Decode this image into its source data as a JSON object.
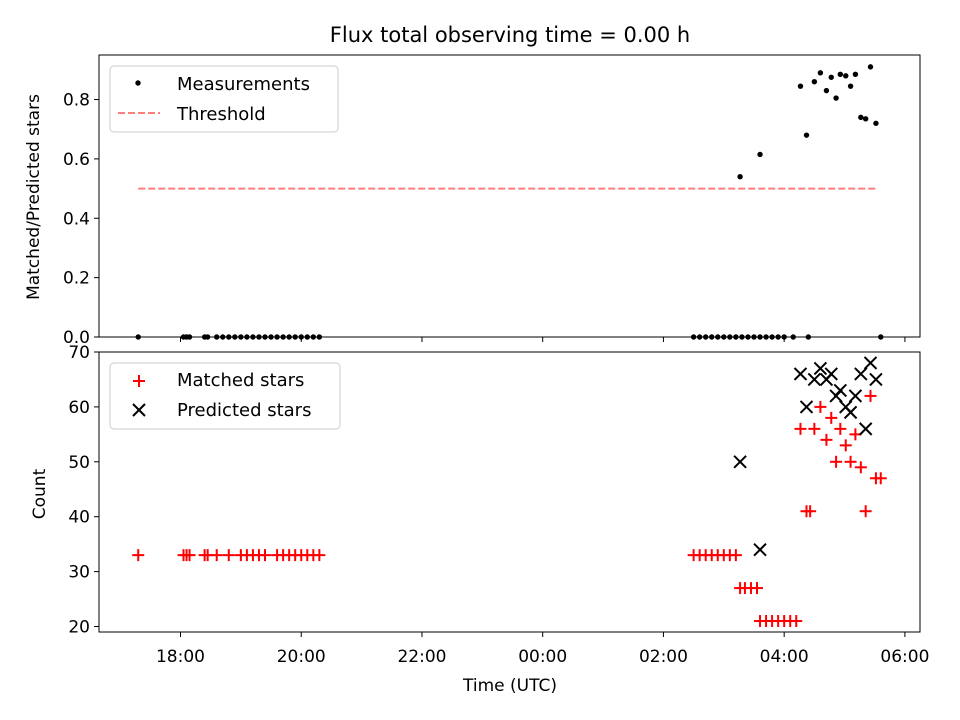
{
  "chart_data": [
    {
      "type": "scatter",
      "title": "Flux total observing time = 0.00 h",
      "ylabel": "Matched/Predicted stars",
      "ylim": [
        0,
        0.95
      ],
      "yticks": [
        0.0,
        0.2,
        0.4,
        0.6,
        0.8
      ],
      "ytick_labels": [
        "0.0",
        "0.2",
        "0.4",
        "0.6",
        "0.8"
      ],
      "legend": {
        "position": "top-left",
        "entries": [
          "Measurements",
          "Threshold"
        ]
      },
      "series": [
        {
          "name": "Measurements",
          "marker": "dot",
          "color": "#000000",
          "points": [
            [
              -6.7,
              0
            ],
            [
              -5.95,
              0
            ],
            [
              -5.9,
              0
            ],
            [
              -5.85,
              0
            ],
            [
              -5.6,
              0
            ],
            [
              -5.55,
              0
            ],
            [
              -5.4,
              0
            ],
            [
              -5.3,
              0
            ],
            [
              -5.2,
              0
            ],
            [
              -5.1,
              0
            ],
            [
              -5.0,
              0
            ],
            [
              -4.9,
              0
            ],
            [
              -4.8,
              0
            ],
            [
              -4.7,
              0
            ],
            [
              -4.6,
              0
            ],
            [
              -4.5,
              0
            ],
            [
              -4.4,
              0
            ],
            [
              -4.3,
              0
            ],
            [
              -4.2,
              0
            ],
            [
              -4.1,
              0
            ],
            [
              -4.0,
              0
            ],
            [
              -3.9,
              0
            ],
            [
              -3.8,
              0
            ],
            [
              -3.7,
              0
            ],
            [
              2.5,
              0
            ],
            [
              2.6,
              0
            ],
            [
              2.7,
              0
            ],
            [
              2.8,
              0
            ],
            [
              2.9,
              0
            ],
            [
              3.0,
              0
            ],
            [
              3.1,
              0
            ],
            [
              3.2,
              0
            ],
            [
              3.3,
              0
            ],
            [
              3.4,
              0
            ],
            [
              3.5,
              0
            ],
            [
              3.6,
              0
            ],
            [
              3.7,
              0
            ],
            [
              3.8,
              0
            ],
            [
              3.9,
              0
            ],
            [
              4.0,
              0
            ],
            [
              4.15,
              0
            ],
            [
              4.4,
              0
            ],
            [
              5.6,
              0
            ],
            [
              3.27,
              0.54
            ],
            [
              3.6,
              0.615
            ],
            [
              4.27,
              0.845
            ],
            [
              4.37,
              0.68
            ],
            [
              4.5,
              0.86
            ],
            [
              4.6,
              0.89
            ],
            [
              4.7,
              0.83
            ],
            [
              4.78,
              0.875
            ],
            [
              4.86,
              0.805
            ],
            [
              4.93,
              0.885
            ],
            [
              5.02,
              0.88
            ],
            [
              5.1,
              0.845
            ],
            [
              5.18,
              0.885
            ],
            [
              5.27,
              0.74
            ],
            [
              5.35,
              0.735
            ],
            [
              5.43,
              0.91
            ],
            [
              5.52,
              0.72
            ]
          ]
        },
        {
          "name": "Threshold",
          "style": "dashed",
          "color": "#ff7f7f",
          "x": [
            -6.7,
            5.55
          ],
          "y": [
            0.5,
            0.5
          ]
        }
      ]
    },
    {
      "type": "scatter",
      "xlabel": "Time (UTC)",
      "ylabel": "Count",
      "ylim": [
        19,
        70
      ],
      "yticks": [
        20,
        30,
        40,
        50,
        60,
        70
      ],
      "ytick_labels": [
        "20",
        "30",
        "40",
        "50",
        "60",
        "70"
      ],
      "xlim": [
        -7.35,
        6.25
      ],
      "xticks": [
        -6,
        -4,
        -2,
        0,
        2,
        4,
        6
      ],
      "xtick_labels": [
        "18:00",
        "20:00",
        "22:00",
        "00:00",
        "02:00",
        "04:00",
        "06:00"
      ],
      "x_units": "hours relative to 00:00 UTC",
      "legend": {
        "position": "top-left",
        "entries": [
          "Matched stars",
          "Predicted stars"
        ]
      },
      "series": [
        {
          "name": "Matched stars",
          "marker": "plus",
          "color": "#ff0000",
          "points": [
            [
              -6.7,
              33
            ],
            [
              -5.95,
              33
            ],
            [
              -5.9,
              33
            ],
            [
              -5.85,
              33
            ],
            [
              -5.6,
              33
            ],
            [
              -5.55,
              33
            ],
            [
              -5.4,
              33
            ],
            [
              -5.2,
              33
            ],
            [
              -5.0,
              33
            ],
            [
              -4.9,
              33
            ],
            [
              -4.8,
              33
            ],
            [
              -4.7,
              33
            ],
            [
              -4.6,
              33
            ],
            [
              -4.4,
              33
            ],
            [
              -4.3,
              33
            ],
            [
              -4.2,
              33
            ],
            [
              -4.1,
              33
            ],
            [
              -4.0,
              33
            ],
            [
              -3.9,
              33
            ],
            [
              -3.8,
              33
            ],
            [
              -3.7,
              33
            ],
            [
              2.5,
              33
            ],
            [
              2.6,
              33
            ],
            [
              2.7,
              33
            ],
            [
              2.8,
              33
            ],
            [
              2.9,
              33
            ],
            [
              3.0,
              33
            ],
            [
              3.1,
              33
            ],
            [
              3.2,
              33
            ],
            [
              3.27,
              27
            ],
            [
              3.35,
              27
            ],
            [
              3.45,
              27
            ],
            [
              3.55,
              27
            ],
            [
              3.6,
              21
            ],
            [
              3.7,
              21
            ],
            [
              3.8,
              21
            ],
            [
              3.9,
              21
            ],
            [
              4.0,
              21
            ],
            [
              4.1,
              21
            ],
            [
              4.2,
              21
            ],
            [
              4.27,
              56
            ],
            [
              4.37,
              41
            ],
            [
              4.43,
              41
            ],
            [
              4.5,
              56
            ],
            [
              4.6,
              60
            ],
            [
              4.7,
              54
            ],
            [
              4.78,
              58
            ],
            [
              4.86,
              50
            ],
            [
              4.93,
              56
            ],
            [
              5.02,
              53
            ],
            [
              5.1,
              50
            ],
            [
              5.18,
              55
            ],
            [
              5.27,
              49
            ],
            [
              5.35,
              41
            ],
            [
              5.43,
              62
            ],
            [
              5.52,
              47
            ],
            [
              5.6,
              47
            ]
          ]
        },
        {
          "name": "Predicted stars",
          "marker": "x",
          "color": "#000000",
          "points": [
            [
              3.27,
              50
            ],
            [
              3.6,
              34
            ],
            [
              4.27,
              66
            ],
            [
              4.37,
              60
            ],
            [
              4.5,
              65
            ],
            [
              4.6,
              67
            ],
            [
              4.7,
              65
            ],
            [
              4.78,
              66
            ],
            [
              4.86,
              62
            ],
            [
              4.93,
              63
            ],
            [
              5.02,
              60
            ],
            [
              5.1,
              59
            ],
            [
              5.18,
              62
            ],
            [
              5.27,
              66
            ],
            [
              5.35,
              56
            ],
            [
              5.43,
              68
            ],
            [
              5.52,
              65
            ]
          ]
        }
      ]
    }
  ]
}
